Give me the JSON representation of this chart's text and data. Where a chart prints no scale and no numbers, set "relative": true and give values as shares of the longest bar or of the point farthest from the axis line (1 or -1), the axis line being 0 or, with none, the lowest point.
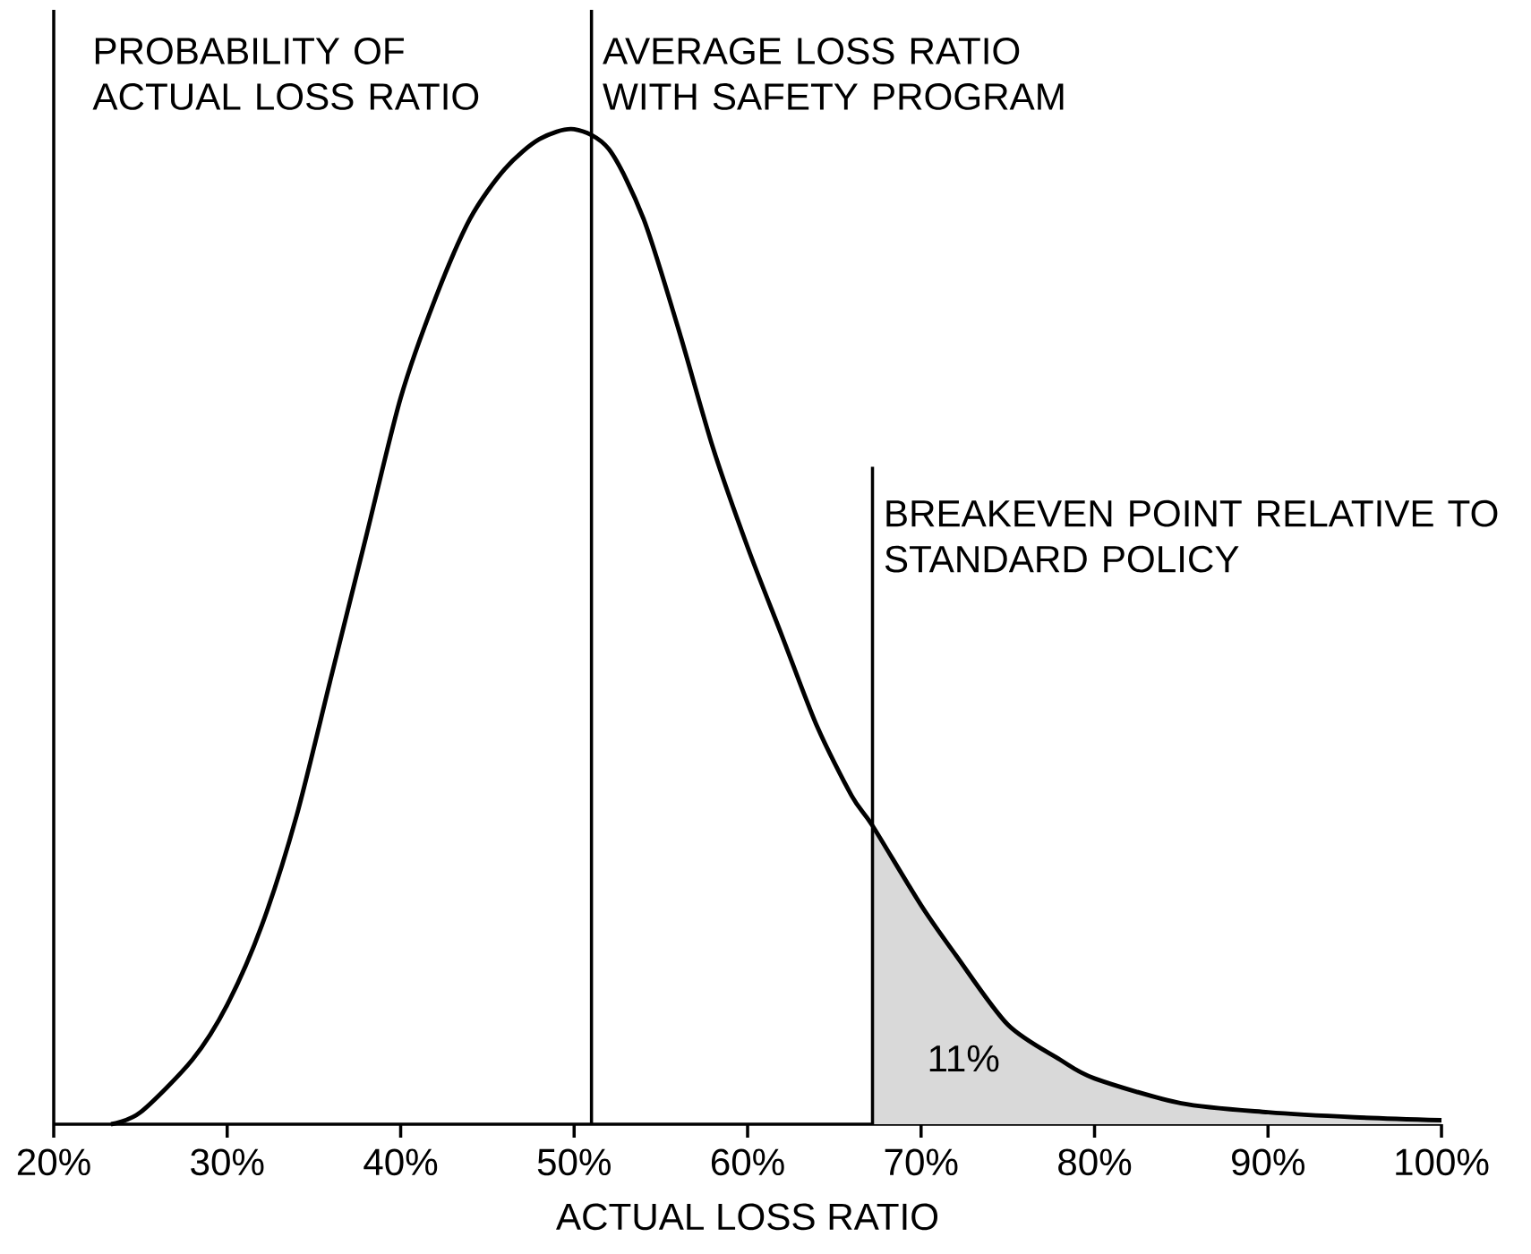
{
  "chart_data": {
    "type": "line",
    "relative": true,
    "xlabel": "ACTUAL LOSS RATIO",
    "ylabel": "PROBABILITY OF ACTUAL LOSS RATIO",
    "xlim": [
      20,
      100
    ],
    "xticks": [
      {
        "value": 20,
        "label": "20%"
      },
      {
        "value": 30,
        "label": "30%"
      },
      {
        "value": 40,
        "label": "40%"
      },
      {
        "value": 50,
        "label": "50%"
      },
      {
        "value": 60,
        "label": "60%"
      },
      {
        "value": 70,
        "label": "70%"
      },
      {
        "value": 80,
        "label": "80%"
      },
      {
        "value": 90,
        "label": "90%"
      },
      {
        "value": 100,
        "label": "100%"
      }
    ],
    "series": [
      {
        "type": "area",
        "color": "#d9d9d9",
        "x": [
          67.2,
          70,
          72,
          75,
          78,
          80,
          85,
          90,
          95,
          100
        ],
        "values": [
          0.3,
          0.22,
          0.17,
          0.1,
          0.065,
          0.046,
          0.021,
          0.012,
          0.007,
          0.004
        ]
      },
      {
        "color": "#000000",
        "x": [
          23.3,
          25,
          28,
          30,
          32,
          34,
          36,
          38,
          40,
          42,
          44,
          46,
          48,
          50,
          52,
          54,
          56,
          58,
          60,
          62,
          64,
          66,
          67.2,
          70,
          72,
          75,
          78,
          80,
          85,
          90,
          95,
          100
        ],
        "values": [
          0,
          0.012,
          0.065,
          0.12,
          0.2,
          0.31,
          0.45,
          0.59,
          0.73,
          0.83,
          0.91,
          0.96,
          0.99,
          1.0,
          0.98,
          0.91,
          0.8,
          0.68,
          0.58,
          0.49,
          0.4,
          0.33,
          0.3,
          0.22,
          0.17,
          0.1,
          0.065,
          0.046,
          0.021,
          0.012,
          0.007,
          0.004
        ]
      }
    ],
    "ref_lines": [
      {
        "axis": "x",
        "value": 51,
        "label": "AVERAGE LOSS RATIO WITH SAFETY PROGRAM"
      },
      {
        "axis": "x",
        "value": 67.2,
        "label": "BREAKEVEN POINT RELATIVE TO STANDARD POLICY"
      }
    ],
    "annotations": [
      "11%"
    ]
  }
}
